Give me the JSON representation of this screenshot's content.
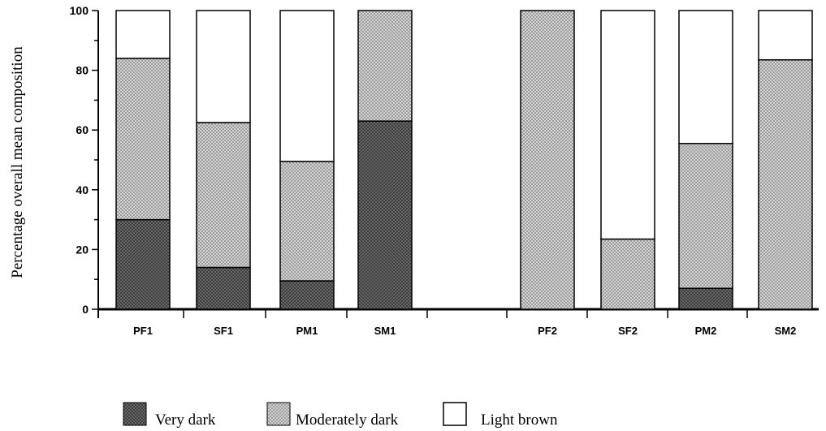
{
  "chart_data": {
    "type": "bar",
    "stacked": true,
    "ylabel": "Percentage overall mean composition",
    "xlabel": "",
    "title": "",
    "ylim": [
      0,
      100
    ],
    "yticks": [
      "0",
      "20",
      "40",
      "60",
      "80",
      "100"
    ],
    "categories": [
      "PF1",
      "SF1",
      "PM1",
      "SM1",
      "PF2",
      "SF2",
      "PM2",
      "SM2"
    ],
    "series": [
      {
        "name": "Very dark",
        "values": [
          30,
          14,
          9.5,
          63,
          0,
          0,
          7,
          0
        ]
      },
      {
        "name": "Moderately dark",
        "values": [
          54,
          48.5,
          40,
          37,
          100,
          23.5,
          48.5,
          83.5
        ]
      },
      {
        "name": "Light brown",
        "values": [
          16,
          37.5,
          50.5,
          0,
          0,
          76.5,
          44.5,
          16.5
        ]
      }
    ],
    "legend": {
      "position": "bottom",
      "items": [
        "Very dark",
        "Moderately dark",
        "Light brown"
      ]
    },
    "grid": false
  }
}
